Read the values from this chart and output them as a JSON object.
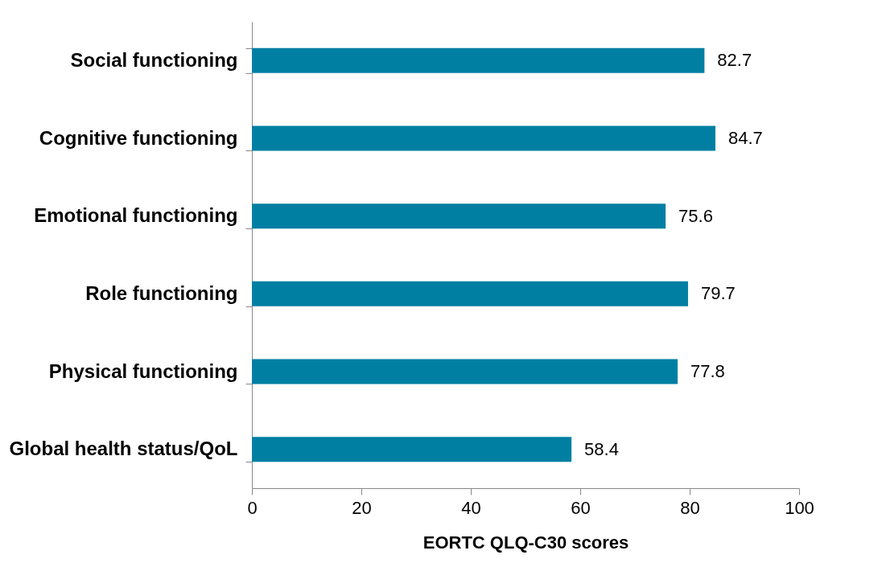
{
  "chart_data": {
    "type": "bar",
    "orientation": "horizontal",
    "xlabel": "EORTC QLQ-C30 scores",
    "categories": [
      "Social functioning",
      "Cognitive functioning",
      "Emotional functioning",
      "Role functioning",
      "Physical functioning",
      "Global health status/QoL"
    ],
    "values": [
      82.7,
      84.7,
      75.6,
      79.7,
      77.8,
      58.4
    ],
    "color": "#007fa3",
    "xlim": [
      0,
      100
    ],
    "xticks": [
      0,
      20,
      40,
      60,
      80,
      100
    ],
    "data_labels": true
  }
}
